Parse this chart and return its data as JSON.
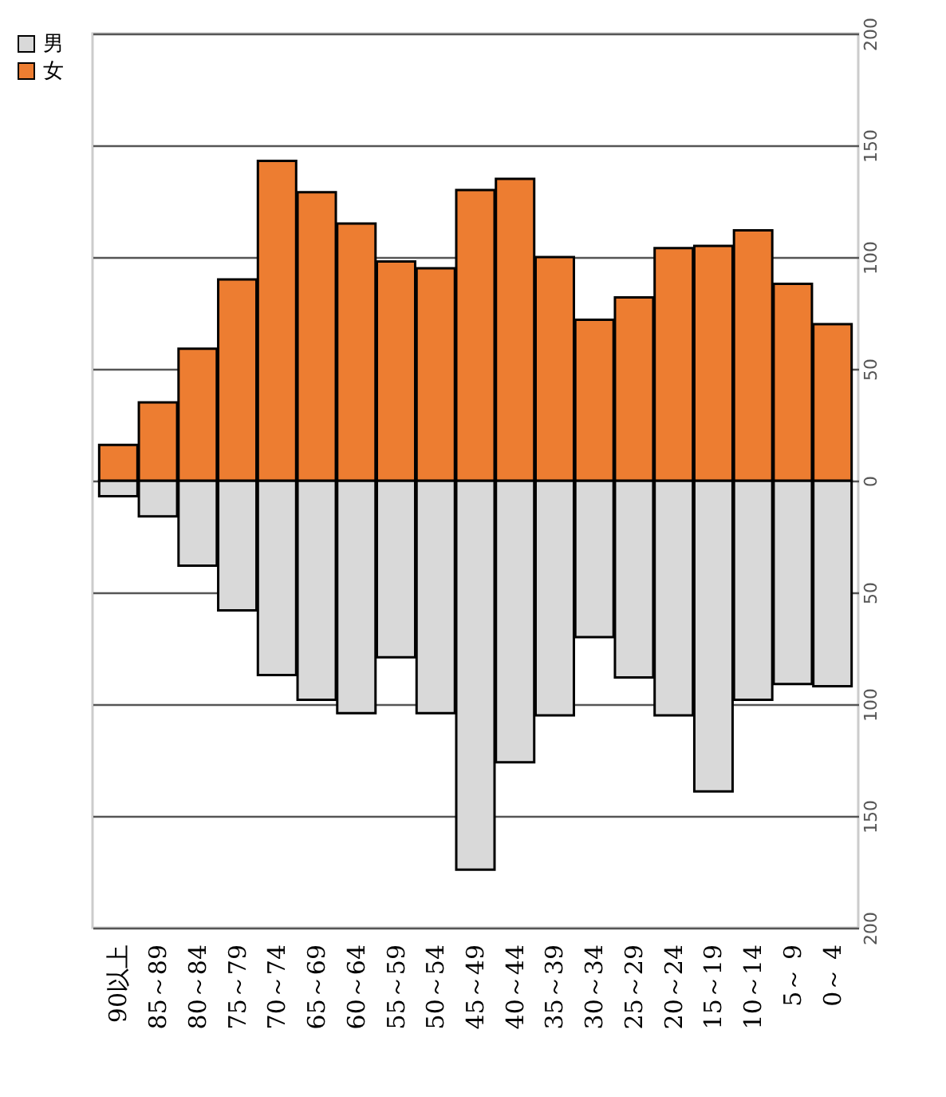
{
  "chart_data": {
    "type": "bar",
    "categories": [
      "90以上",
      "85～89",
      "80～84",
      "75～79",
      "70～74",
      "65～69",
      "60～64",
      "55～59",
      "50～54",
      "45～49",
      "40～44",
      "35～39",
      "30～34",
      "25～29",
      "20～24",
      "15～19",
      "10～14",
      "5～ 9",
      "0～ 4"
    ],
    "series": [
      {
        "name": "男",
        "color": "#d9d9d9",
        "values": [
          -7,
          -16,
          -38,
          -58,
          -87,
          -98,
          -104,
          -79,
          -104,
          -174,
          -126,
          -105,
          -70,
          -88,
          -105,
          -139,
          -98,
          -91,
          -92
        ]
      },
      {
        "name": "女",
        "color": "#ed7d31",
        "values": [
          16,
          35,
          59,
          90,
          143,
          129,
          115,
          98,
          95,
          130,
          135,
          100,
          72,
          82,
          104,
          105,
          112,
          88,
          70
        ]
      }
    ],
    "ylim": [
      -200,
      200
    ],
    "yticks": [
      {
        "value": -200,
        "label": "200"
      },
      {
        "value": -150,
        "label": "150"
      },
      {
        "value": -100,
        "label": "100"
      },
      {
        "value": -50,
        "label": "50"
      },
      0,
      50,
      100,
      150,
      200
    ],
    "stacked": true,
    "grid": "y",
    "legend": "left"
  }
}
